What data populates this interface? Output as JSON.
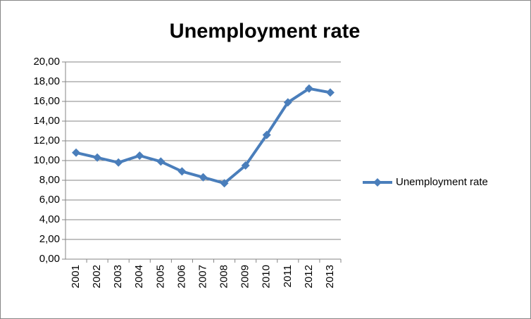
{
  "chart_data": {
    "type": "line",
    "title": "Unemployment rate",
    "categories": [
      "2001",
      "2002",
      "2003",
      "2004",
      "2005",
      "2006",
      "2007",
      "2008",
      "2009",
      "2010",
      "2011",
      "2012",
      "2013"
    ],
    "series": [
      {
        "name": "Unemployment rate",
        "color": "#4a7ebb",
        "values": [
          10.8,
          10.3,
          9.8,
          10.5,
          9.9,
          8.9,
          8.3,
          7.7,
          9.5,
          12.6,
          15.9,
          17.3,
          16.9
        ]
      }
    ],
    "ylim": [
      0,
      20
    ],
    "yticks": [
      {
        "value": 0,
        "label": "0,00"
      },
      {
        "value": 2,
        "label": "2,00"
      },
      {
        "value": 4,
        "label": "4,00"
      },
      {
        "value": 6,
        "label": "6,00"
      },
      {
        "value": 8,
        "label": "8,00"
      },
      {
        "value": 10,
        "label": "10,00"
      },
      {
        "value": 12,
        "label": "12,00"
      },
      {
        "value": 14,
        "label": "14,00"
      },
      {
        "value": 16,
        "label": "16,00"
      },
      {
        "value": 18,
        "label": "18,00"
      },
      {
        "value": 20,
        "label": "20,00"
      }
    ],
    "grid": true,
    "legend": "right"
  }
}
